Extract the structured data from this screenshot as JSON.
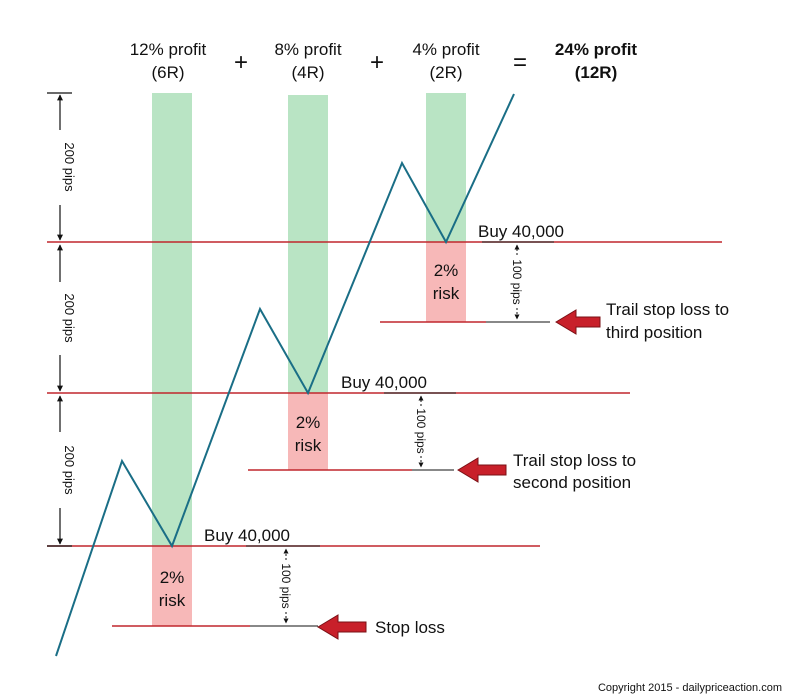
{
  "header": {
    "terms": [
      {
        "line1": "12% profit",
        "line2": "(6R)"
      },
      {
        "line1": "8% profit",
        "line2": "(4R)"
      },
      {
        "line1": "4% profit",
        "line2": "(2R)"
      }
    ],
    "plus": "+",
    "equals": "=",
    "total": {
      "line1": "24% profit",
      "line2": "(12R)"
    }
  },
  "scale_labels": [
    "200 pips",
    "200 pips",
    "200 pips"
  ],
  "positions": [
    {
      "buy_label": "Buy 40,000",
      "risk_line1": "2%",
      "risk_line2": "risk",
      "stop_distance": "100 pips",
      "note_line1": "Stop loss",
      "note_line2": ""
    },
    {
      "buy_label": "Buy 40,000",
      "risk_line1": "2%",
      "risk_line2": "risk",
      "stop_distance": "100 pips",
      "note_line1": "Trail stop loss to",
      "note_line2": "second position"
    },
    {
      "buy_label": "Buy 40,000",
      "risk_line1": "2%",
      "risk_line2": "risk",
      "stop_distance": "100 pips",
      "note_line1": "Trail stop loss to",
      "note_line2": "third position"
    }
  ],
  "copyright": "Copyright 2015 - dailypriceaction.com",
  "colors": {
    "profit_zone": "#b9e4c4",
    "risk_zone": "#f7b8b8",
    "price_line": "#1a6e86",
    "level_line": "#c0272d",
    "arrow": "#c8202a",
    "text": "#111111"
  }
}
